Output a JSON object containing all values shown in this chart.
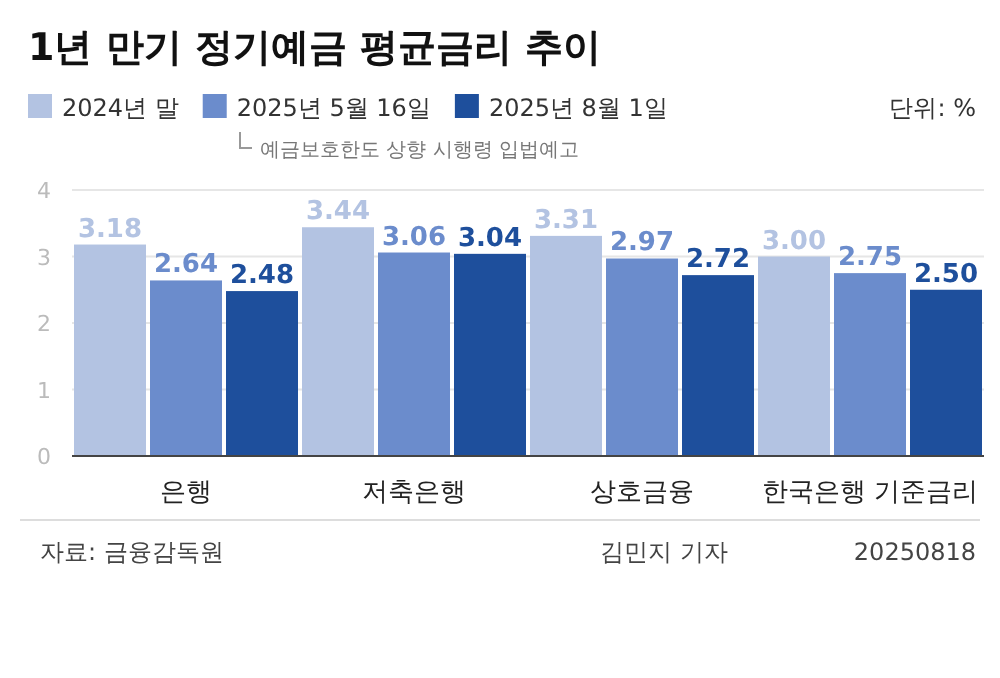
{
  "chart_data": {
    "type": "bar",
    "title": "1년 만기 정기예금 평균금리 추이",
    "categories": [
      "은행",
      "저축은행",
      "상호금융",
      "한국은행 기준금리"
    ],
    "series": [
      {
        "name": "2024년 말",
        "color": "#b3c3e2",
        "values": [
          3.18,
          3.44,
          3.31,
          3.0
        ]
      },
      {
        "name": "2025년 5월 16일",
        "color": "#6b8ccc",
        "values": [
          2.64,
          3.06,
          2.97,
          2.75
        ]
      },
      {
        "name": "2025년 8월 1일",
        "color": "#1e4f9c",
        "values": [
          2.48,
          3.04,
          2.72,
          2.5
        ]
      }
    ],
    "value_labels": [
      [
        "3.18",
        "3.44",
        "3.31",
        "3.00"
      ],
      [
        "2.64",
        "3.06",
        "2.97",
        "2.75"
      ],
      [
        "2.48",
        "3.04",
        "2.72",
        "2.50"
      ]
    ],
    "ylim": [
      0,
      4
    ],
    "yticks": [
      0,
      1,
      2,
      3,
      4
    ],
    "grid": "y",
    "legend": "top left",
    "annotations": [
      "예금보호한도 상향 시행령 입법예고",
      "단위: %",
      "자료: 금융감독원",
      "김민지 기자",
      "20250818"
    ]
  }
}
